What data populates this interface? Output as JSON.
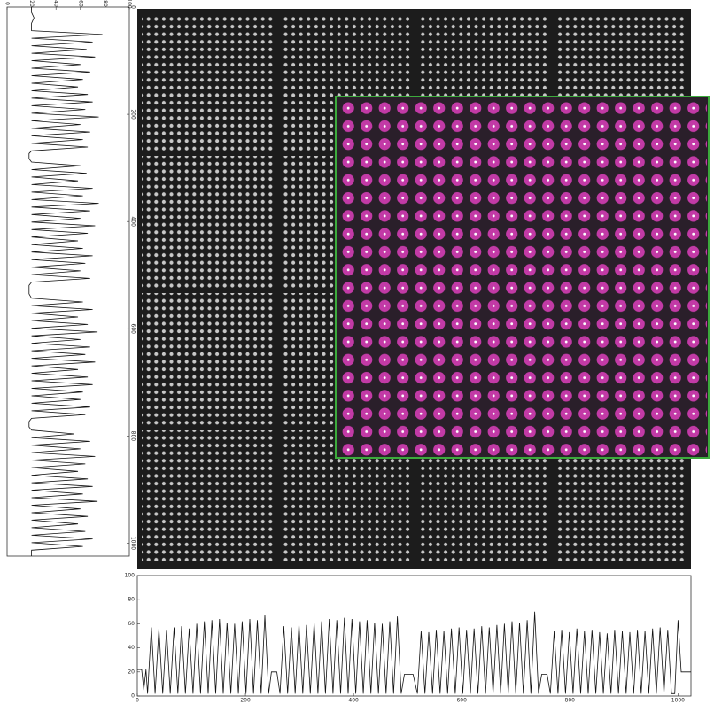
{
  "chart_data": [
    {
      "type": "line",
      "orientation": "vertical",
      "color": "#111111",
      "xlim": [
        0,
        1024
      ],
      "xticks": [
        0,
        200,
        400,
        600,
        800,
        1000
      ],
      "ylim": [
        0,
        100
      ],
      "yticks": [
        0,
        20,
        40,
        60,
        80,
        100
      ],
      "x": [
        0,
        10,
        20,
        30,
        44,
        51,
        58,
        65,
        72,
        79,
        86,
        93,
        100,
        107,
        114,
        121,
        128,
        135,
        142,
        149,
        156,
        163,
        170,
        177,
        184,
        191,
        198,
        205,
        212,
        219,
        226,
        233,
        240,
        247,
        254,
        261,
        268,
        273,
        283,
        289,
        296,
        303,
        310,
        317,
        324,
        331,
        338,
        345,
        352,
        359,
        366,
        373,
        380,
        387,
        394,
        401,
        408,
        415,
        422,
        429,
        436,
        443,
        450,
        457,
        464,
        471,
        478,
        485,
        492,
        499,
        506,
        513,
        519,
        535,
        543,
        550,
        557,
        564,
        571,
        578,
        585,
        592,
        599,
        606,
        613,
        620,
        627,
        634,
        641,
        648,
        655,
        662,
        669,
        676,
        683,
        690,
        697,
        704,
        711,
        718,
        725,
        732,
        739,
        746,
        753,
        760,
        767,
        773,
        783,
        789,
        796,
        803,
        810,
        817,
        824,
        831,
        838,
        845,
        852,
        859,
        866,
        873,
        880,
        887,
        894,
        901,
        908,
        915,
        922,
        929,
        936,
        943,
        950,
        957,
        964,
        971,
        978,
        985,
        992,
        999,
        1006,
        1013,
        1018,
        1024
      ],
      "values": [
        20,
        20,
        22,
        20,
        20,
        78,
        20,
        70,
        20,
        65,
        20,
        72,
        20,
        60,
        20,
        68,
        20,
        62,
        20,
        58,
        20,
        66,
        20,
        70,
        20,
        64,
        20,
        75,
        20,
        60,
        20,
        68,
        20,
        62,
        20,
        66,
        20,
        18,
        18,
        20,
        60,
        20,
        65,
        20,
        58,
        20,
        70,
        20,
        62,
        20,
        75,
        20,
        68,
        20,
        60,
        20,
        72,
        20,
        66,
        20,
        58,
        20,
        62,
        20,
        70,
        20,
        64,
        20,
        60,
        20,
        68,
        20,
        18,
        18,
        20,
        62,
        20,
        70,
        20,
        58,
        20,
        66,
        20,
        74,
        20,
        60,
        20,
        68,
        20,
        64,
        20,
        72,
        20,
        58,
        20,
        66,
        20,
        70,
        20,
        62,
        20,
        60,
        20,
        68,
        20,
        64,
        20,
        18,
        18,
        20,
        55,
        20,
        68,
        20,
        60,
        20,
        72,
        20,
        64,
        20,
        58,
        20,
        66,
        20,
        70,
        20,
        62,
        20,
        74,
        20,
        60,
        20,
        66,
        20,
        58,
        20,
        64,
        20,
        70,
        20,
        62,
        20,
        20,
        20
      ]
    },
    {
      "type": "line",
      "orientation": "horizontal",
      "color": "#111111",
      "xlim": [
        0,
        1024
      ],
      "xticks": [
        0,
        200,
        400,
        600,
        800,
        1000
      ],
      "ylim": [
        0,
        100
      ],
      "yticks": [
        0,
        20,
        40,
        60,
        80,
        100
      ],
      "x": [
        0,
        8,
        12,
        16,
        19,
        26,
        33,
        40,
        47,
        54,
        61,
        68,
        75,
        82,
        89,
        96,
        103,
        110,
        117,
        124,
        131,
        138,
        145,
        152,
        159,
        166,
        173,
        180,
        187,
        194,
        201,
        208,
        215,
        222,
        229,
        236,
        243,
        248,
        258,
        264,
        271,
        278,
        285,
        292,
        299,
        306,
        313,
        320,
        327,
        334,
        341,
        348,
        355,
        362,
        369,
        376,
        383,
        390,
        397,
        404,
        411,
        418,
        425,
        432,
        439,
        446,
        453,
        460,
        467,
        474,
        481,
        488,
        494,
        510,
        518,
        525,
        532,
        539,
        546,
        553,
        560,
        567,
        574,
        581,
        588,
        595,
        602,
        609,
        616,
        623,
        630,
        637,
        644,
        651,
        658,
        665,
        672,
        679,
        686,
        693,
        700,
        707,
        714,
        721,
        728,
        735,
        742,
        748,
        758,
        764,
        771,
        778,
        785,
        792,
        799,
        806,
        813,
        820,
        827,
        834,
        841,
        848,
        855,
        862,
        869,
        876,
        883,
        890,
        897,
        904,
        911,
        918,
        925,
        932,
        939,
        946,
        953,
        960,
        967,
        974,
        981,
        988,
        994,
        1000,
        1006,
        1024
      ],
      "values": [
        22,
        22,
        5,
        22,
        2,
        57,
        2,
        56,
        2,
        55,
        2,
        57,
        2,
        58,
        2,
        56,
        2,
        60,
        2,
        62,
        2,
        63,
        2,
        64,
        2,
        61,
        2,
        60,
        2,
        62,
        2,
        64,
        2,
        63,
        2,
        67,
        2,
        20,
        20,
        2,
        58,
        2,
        57,
        2,
        60,
        2,
        59,
        2,
        61,
        2,
        62,
        2,
        64,
        2,
        63,
        2,
        65,
        2,
        64,
        2,
        62,
        2,
        63,
        2,
        61,
        2,
        60,
        2,
        62,
        2,
        66,
        2,
        18,
        18,
        2,
        54,
        2,
        53,
        2,
        55,
        2,
        54,
        2,
        56,
        2,
        57,
        2,
        55,
        2,
        56,
        2,
        58,
        2,
        57,
        2,
        59,
        2,
        60,
        2,
        62,
        2,
        61,
        2,
        63,
        2,
        70,
        2,
        18,
        18,
        2,
        54,
        2,
        55,
        2,
        53,
        2,
        56,
        2,
        54,
        2,
        55,
        2,
        53,
        2,
        52,
        2,
        55,
        2,
        54,
        2,
        53,
        2,
        55,
        2,
        54,
        2,
        56,
        2,
        57,
        2,
        55,
        2,
        2,
        63,
        20,
        20
      ]
    }
  ]
}
